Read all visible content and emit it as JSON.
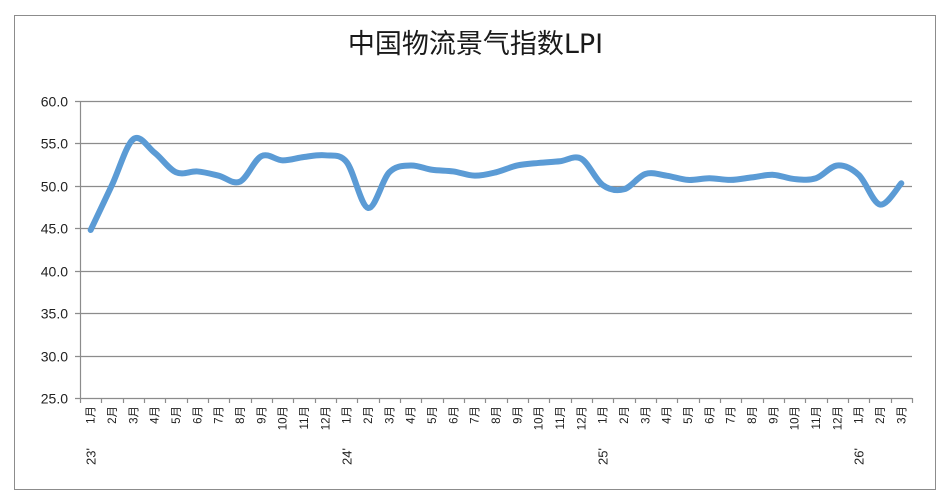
{
  "chart_data": {
    "type": "line",
    "title": "中国物流景气指数LPI",
    "xlabel": "",
    "ylabel": "",
    "ylim": [
      25.0,
      60.0
    ],
    "yticks": [
      "60.0",
      "55.0",
      "50.0",
      "45.0",
      "40.0",
      "35.0",
      "30.0",
      "25.0"
    ],
    "grid": true,
    "legend": null,
    "line_color": "#5b9bd5",
    "categories": [
      "23' 1月",
      "2月",
      "3月",
      "4月",
      "5月",
      "6月",
      "7月",
      "8月",
      "9月",
      "10月",
      "11月",
      "12月",
      "24' 1月",
      "2月",
      "3月",
      "4月",
      "5月",
      "6月",
      "7月",
      "8月",
      "9月",
      "10月",
      "11月",
      "12月",
      "25' 1月",
      "2月",
      "3月",
      "4月",
      "5月",
      "6月",
      "7月",
      "8月",
      "9月",
      "10月",
      "11月",
      "12月",
      "26' 1月",
      "2月",
      "3月"
    ],
    "month_labels": [
      "1月",
      "2月",
      "3月",
      "4月",
      "5月",
      "6月",
      "7月",
      "8月",
      "9月",
      "10月",
      "11月",
      "12月",
      "1月",
      "2月",
      "3月",
      "4月",
      "5月",
      "6月",
      "7月",
      "8月",
      "9月",
      "10月",
      "11月",
      "12月",
      "1月",
      "2月",
      "3月",
      "4月",
      "5月",
      "6月",
      "7月",
      "8月",
      "9月",
      "10月",
      "11月",
      "12月",
      "1月",
      "2月",
      "3月"
    ],
    "year_labels": [
      {
        "index": 0,
        "label": "23'"
      },
      {
        "index": 12,
        "label": "24'"
      },
      {
        "index": 24,
        "label": "25'"
      },
      {
        "index": 36,
        "label": "26'"
      }
    ],
    "series": [
      {
        "name": "LPI",
        "values": [
          44.8,
          50.1,
          55.5,
          53.9,
          51.6,
          51.7,
          51.2,
          50.5,
          53.5,
          53.0,
          53.4,
          53.6,
          52.8,
          47.4,
          51.6,
          52.4,
          51.9,
          51.7,
          51.2,
          51.6,
          52.4,
          52.7,
          52.9,
          53.2,
          50.1,
          49.6,
          51.4,
          51.2,
          50.7,
          50.9,
          50.7,
          51.0,
          51.3,
          50.8,
          50.9,
          52.4,
          51.3,
          47.8,
          50.3
        ]
      }
    ]
  }
}
